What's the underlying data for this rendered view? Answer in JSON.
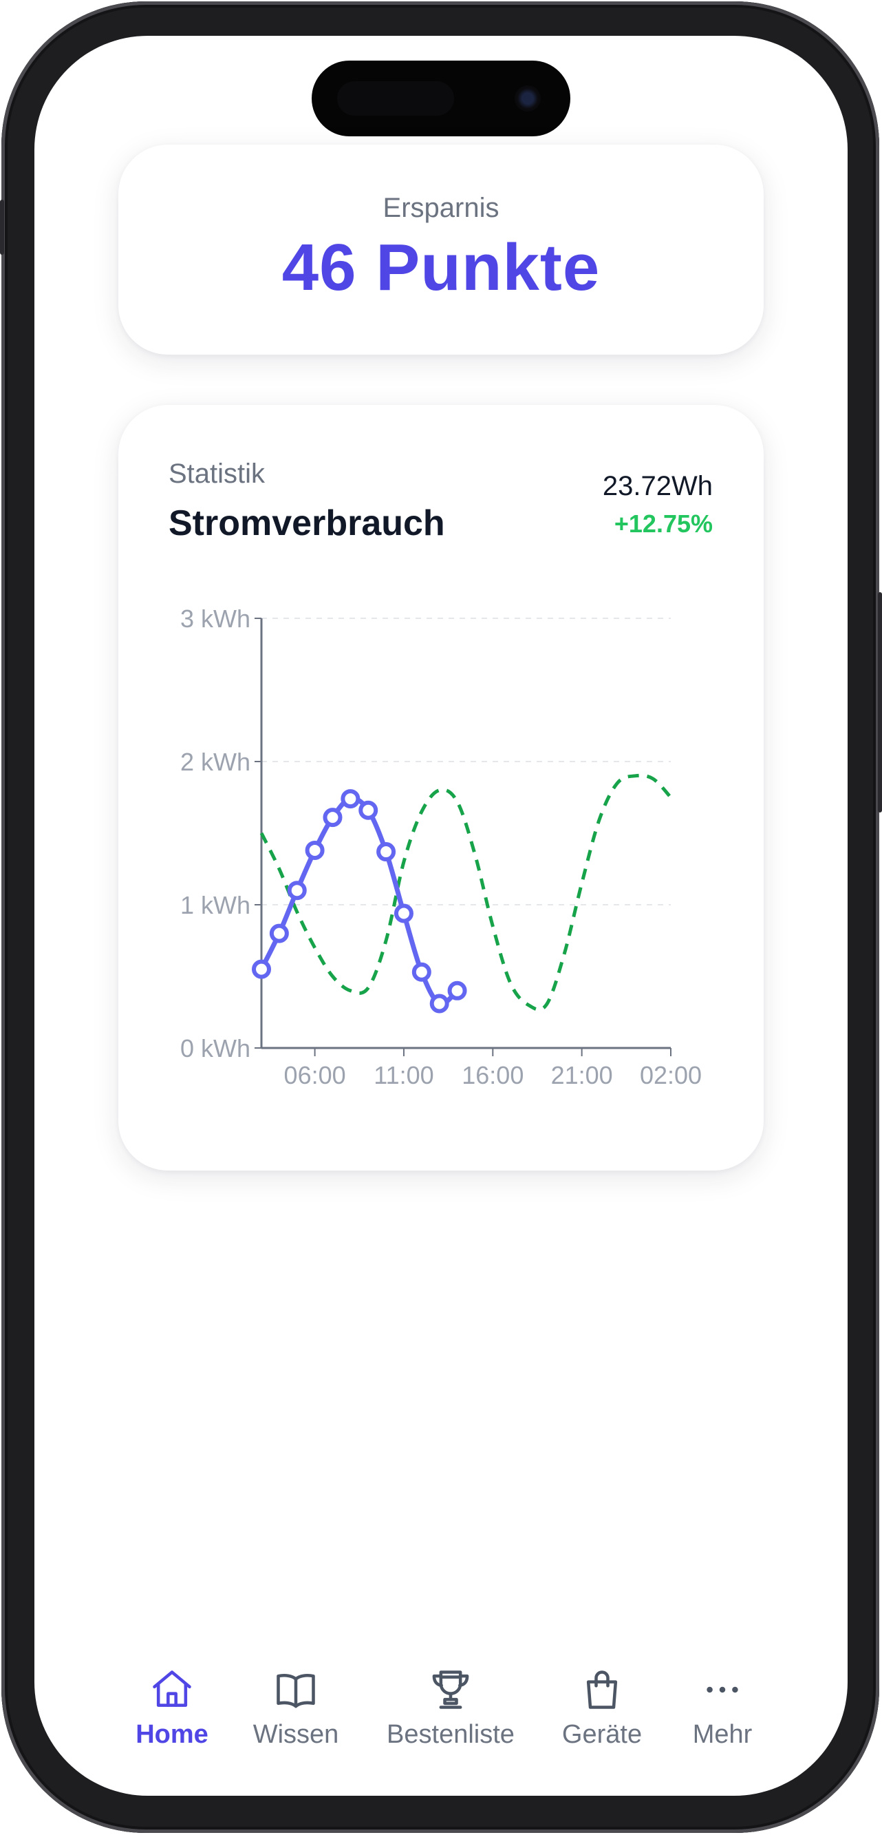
{
  "savings": {
    "label": "Ersparnis",
    "value": "46 Punkte"
  },
  "stats": {
    "eyebrow": "Statistik",
    "title": "Stromverbrauch",
    "total": "23.72Wh",
    "change": "+12.75%"
  },
  "chart_data": {
    "type": "line",
    "title": "",
    "xlabel": "",
    "ylabel": "",
    "x_range_hours": [
      3,
      26
    ],
    "ylim": [
      0,
      3
    ],
    "y_ticks": [
      0,
      1,
      2,
      3
    ],
    "y_tick_labels": [
      "0 kWh",
      "1 kWh",
      "2 kWh",
      "3 kWh"
    ],
    "x_ticks": [
      6,
      11,
      16,
      21,
      26
    ],
    "x_tick_labels": [
      "06:00",
      "11:00",
      "16:00",
      "21:00",
      "02:00"
    ],
    "grid": true,
    "colors": {
      "current": "#6366f1",
      "comparison": "#16a34a"
    },
    "series": [
      {
        "style": "solid-with-markers",
        "x": [
          3,
          4,
          5,
          6,
          7,
          8,
          9,
          10,
          11,
          12,
          13,
          14
        ],
        "y": [
          0.55,
          0.8,
          1.1,
          1.38,
          1.61,
          1.74,
          1.66,
          1.37,
          0.94,
          0.53,
          0.31,
          0.4
        ]
      },
      {
        "style": "dashed",
        "x": [
          3,
          4,
          5,
          6,
          7,
          8,
          9,
          10,
          11,
          12,
          13,
          14,
          15,
          16,
          17,
          18,
          19,
          20,
          21,
          22,
          23,
          24,
          25,
          26
        ],
        "y": [
          1.5,
          1.25,
          0.95,
          0.7,
          0.5,
          0.4,
          0.42,
          0.75,
          1.3,
          1.65,
          1.8,
          1.72,
          1.35,
          0.85,
          0.45,
          0.3,
          0.3,
          0.65,
          1.15,
          1.6,
          1.85,
          1.9,
          1.88,
          1.75
        ]
      }
    ]
  },
  "tabbar": {
    "items": [
      {
        "label": "Home",
        "icon": "home-icon",
        "active": true
      },
      {
        "label": "Wissen",
        "icon": "book-icon",
        "active": false
      },
      {
        "label": "Bestenliste",
        "icon": "trophy-icon",
        "active": false
      },
      {
        "label": "Geräte",
        "icon": "shopping-bag-icon",
        "active": false
      },
      {
        "label": "Mehr",
        "icon": "more-icon",
        "active": false
      }
    ],
    "active_color": "#4f46e5",
    "inactive_color": "#4b5563"
  }
}
